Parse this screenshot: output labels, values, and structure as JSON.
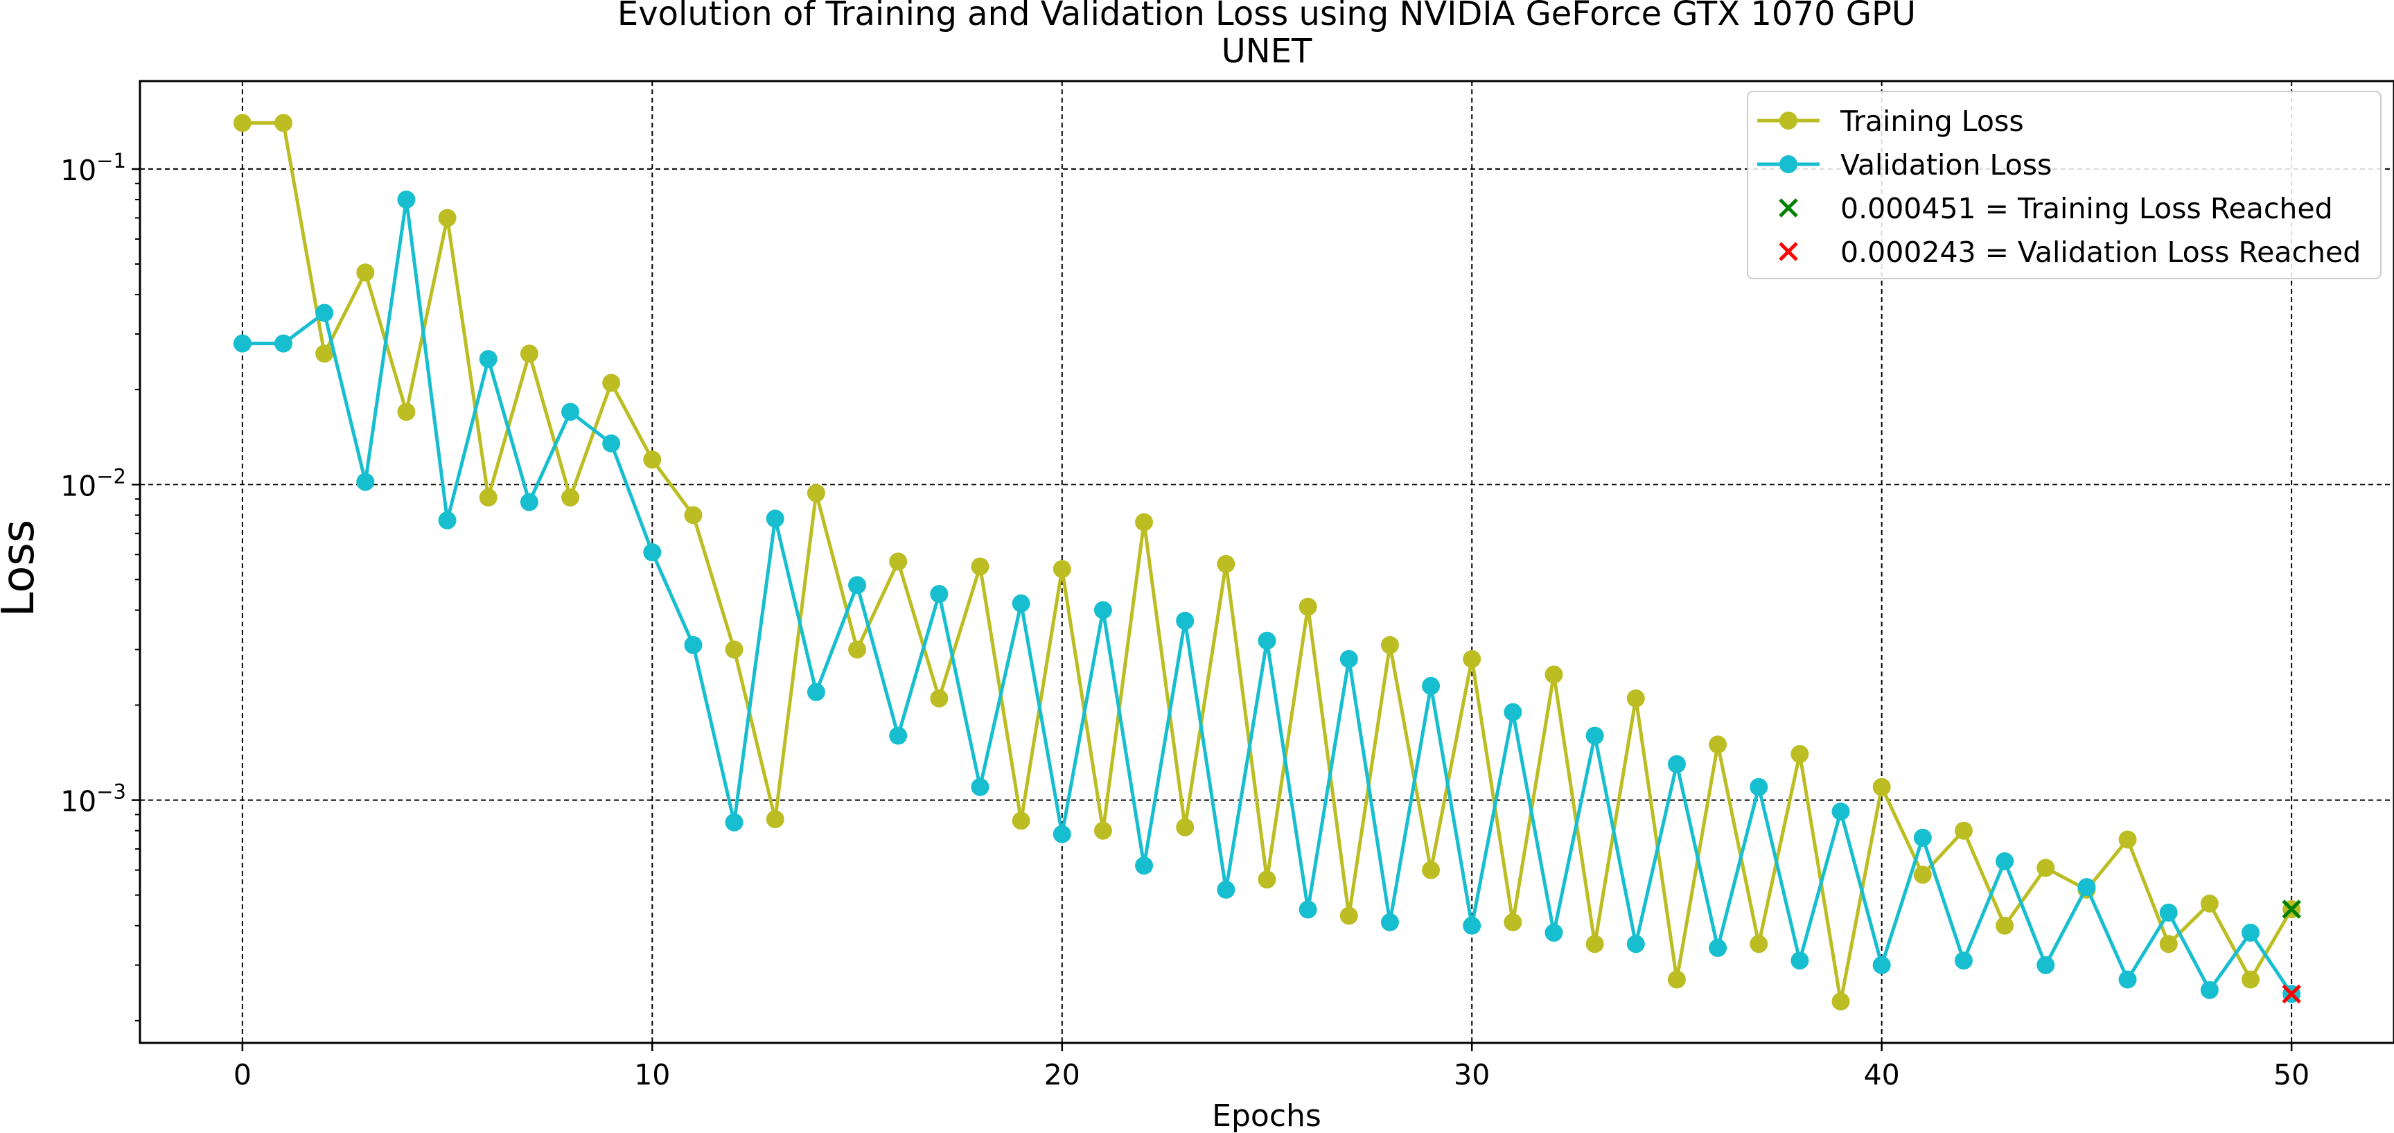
{
  "chart_data": {
    "type": "line",
    "title": "Evolution of Training and Validation Loss using NVIDIA GeForce GTX 1070 GPU",
    "subtitle": "UNET",
    "xlabel": "Epochs",
    "ylabel": "Loss",
    "yscale": "log",
    "xlim": [
      -2.5,
      52.5
    ],
    "ylim": [
      0.00017,
      0.19
    ],
    "grid": true,
    "legend_position": "top-right",
    "x_ticks": [
      0,
      10,
      20,
      30,
      40,
      50
    ],
    "x_tick_labels": [
      "0",
      "10",
      "20",
      "30",
      "40",
      "50"
    ],
    "y_ticks": [
      0.001,
      0.01,
      0.1
    ],
    "y_tick_labels": [
      {
        "base": "10",
        "exp": "−3"
      },
      {
        "base": "10",
        "exp": "−2"
      },
      {
        "base": "10",
        "exp": "−1"
      }
    ],
    "x": [
      0,
      1,
      2,
      3,
      4,
      5,
      6,
      7,
      8,
      9,
      10,
      11,
      12,
      13,
      14,
      15,
      16,
      17,
      18,
      19,
      20,
      21,
      22,
      23,
      24,
      25,
      26,
      27,
      28,
      29,
      30,
      31,
      32,
      33,
      34,
      35,
      36,
      37,
      38,
      39,
      40,
      41,
      42,
      43,
      44,
      45,
      46,
      47,
      48,
      49,
      50
    ],
    "series": [
      {
        "name": "Training Loss",
        "color": "#bcbd22",
        "values": [
          0.14,
          0.14,
          0.026,
          0.047,
          0.017,
          0.07,
          0.0091,
          0.026,
          0.0091,
          0.021,
          0.012,
          0.008,
          0.003,
          0.00087,
          0.0094,
          0.003,
          0.0057,
          0.0021,
          0.0055,
          0.00086,
          0.0054,
          0.0008,
          0.0076,
          0.00082,
          0.0056,
          0.00056,
          0.0041,
          0.00043,
          0.0031,
          0.0006,
          0.0028,
          0.00041,
          0.0025,
          0.00035,
          0.0021,
          0.00027,
          0.0015,
          0.00035,
          0.0014,
          0.00023,
          0.0011,
          0.00058,
          0.0008,
          0.0004,
          0.00061,
          0.00052,
          0.00075,
          0.00035,
          0.00047,
          0.00027,
          0.000451
        ]
      },
      {
        "name": "Validation Loss",
        "color": "#17becf",
        "values": [
          0.028,
          0.028,
          0.035,
          0.0102,
          0.08,
          0.0077,
          0.025,
          0.0088,
          0.017,
          0.0135,
          0.0061,
          0.0031,
          0.00085,
          0.0078,
          0.0022,
          0.0048,
          0.0016,
          0.0045,
          0.0011,
          0.0042,
          0.00078,
          0.004,
          0.00062,
          0.0037,
          0.00052,
          0.0032,
          0.00045,
          0.0028,
          0.00041,
          0.0023,
          0.0004,
          0.0019,
          0.00038,
          0.0016,
          0.00035,
          0.0013,
          0.00034,
          0.0011,
          0.00031,
          0.00092,
          0.0003,
          0.00076,
          0.00031,
          0.00064,
          0.0003,
          0.00053,
          0.00027,
          0.00044,
          0.00025,
          0.00038,
          0.000243
        ]
      }
    ],
    "markers": [
      {
        "label": "0.000451 = Training Loss Reached",
        "x": 50,
        "y": 0.000451,
        "color": "#008000"
      },
      {
        "label": "0.000243 = Validation Loss Reached",
        "x": 50,
        "y": 0.000243,
        "color": "#ff0000"
      }
    ]
  }
}
